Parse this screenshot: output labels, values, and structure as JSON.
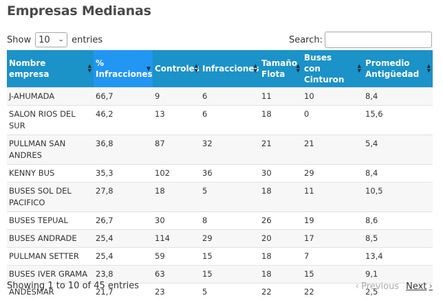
{
  "title": "Empresas Medianas",
  "length_control": {
    "prefix": "Show",
    "selected": "10",
    "suffix": "entries"
  },
  "search": {
    "label": "Search:",
    "value": ""
  },
  "columns": [
    "Nombre empresa",
    "% Infracciones",
    "Controles",
    "Infracciones",
    "Tamaño Flota",
    "Buses con Cinturon",
    "Promedio Antigüedad"
  ],
  "sorted_column": 1,
  "rows": [
    [
      "J-AHUMADA",
      "66,7",
      "9",
      "6",
      "11",
      "10",
      "8,4"
    ],
    [
      "SALON RIOS DEL SUR",
      "46,2",
      "13",
      "6",
      "18",
      "0",
      "15,6"
    ],
    [
      "PULLMAN SAN ANDRES",
      "36,8",
      "87",
      "32",
      "21",
      "21",
      "5,4"
    ],
    [
      "KENNY BUS",
      "35,3",
      "102",
      "36",
      "30",
      "29",
      "8,4"
    ],
    [
      "BUSES SOL DEL PACIFICO",
      "27,8",
      "18",
      "5",
      "18",
      "11",
      "10,5"
    ],
    [
      "BUSES TEPUAL",
      "26,7",
      "30",
      "8",
      "26",
      "19",
      "8,6"
    ],
    [
      "BUSES ANDRADE",
      "25,4",
      "114",
      "29",
      "20",
      "17",
      "8,5"
    ],
    [
      "PULLMAN SETTER",
      "25,4",
      "59",
      "15",
      "18",
      "7",
      "13,4"
    ],
    [
      "BUSES IVER GRAMA",
      "23,8",
      "63",
      "15",
      "18",
      "15",
      "9,1"
    ],
    [
      "ANDESMAR",
      "21,7",
      "23",
      "5",
      "22",
      "22",
      "2,5"
    ]
  ],
  "info": "Showing 1 to 10 of 45 entries",
  "pager": {
    "previous": "Previous",
    "next": "Next"
  },
  "colors": {
    "header": "#1b92c8",
    "header_sorted": "#2196f3",
    "stripe": "#f7f7f7"
  }
}
